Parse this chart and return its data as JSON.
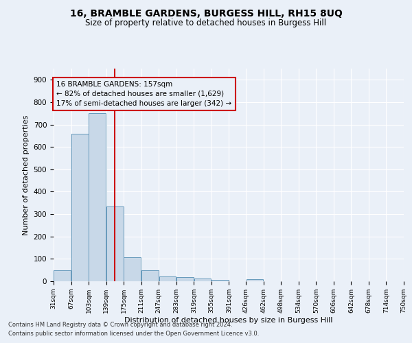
{
  "title": "16, BRAMBLE GARDENS, BURGESS HILL, RH15 8UQ",
  "subtitle": "Size of property relative to detached houses in Burgess Hill",
  "xlabel": "Distribution of detached houses by size in Burgess Hill",
  "ylabel": "Number of detached properties",
  "footnote1": "Contains HM Land Registry data © Crown copyright and database right 2024.",
  "footnote2": "Contains public sector information licensed under the Open Government Licence v3.0.",
  "annotation_title": "16 BRAMBLE GARDENS: 157sqm",
  "annotation_line1": "← 82% of detached houses are smaller (1,629)",
  "annotation_line2": "17% of semi-detached houses are larger (342) →",
  "property_size": 157,
  "bar_edges": [
    31,
    67,
    103,
    139,
    175,
    211,
    247,
    283,
    319,
    355,
    391,
    426,
    462,
    498,
    534,
    570,
    606,
    642,
    678,
    714,
    750
  ],
  "bar_heights": [
    50,
    660,
    750,
    335,
    107,
    50,
    22,
    17,
    11,
    7,
    0,
    8,
    0,
    0,
    0,
    0,
    0,
    0,
    0,
    0
  ],
  "bar_color": "#c8d8e8",
  "bar_edge_color": "#6699bb",
  "vline_color": "#cc0000",
  "annotation_box_color": "#cc0000",
  "bg_color": "#eaf0f8",
  "grid_color": "#ffffff",
  "ylim": [
    0,
    950
  ],
  "yticks": [
    0,
    100,
    200,
    300,
    400,
    500,
    600,
    700,
    800,
    900
  ]
}
